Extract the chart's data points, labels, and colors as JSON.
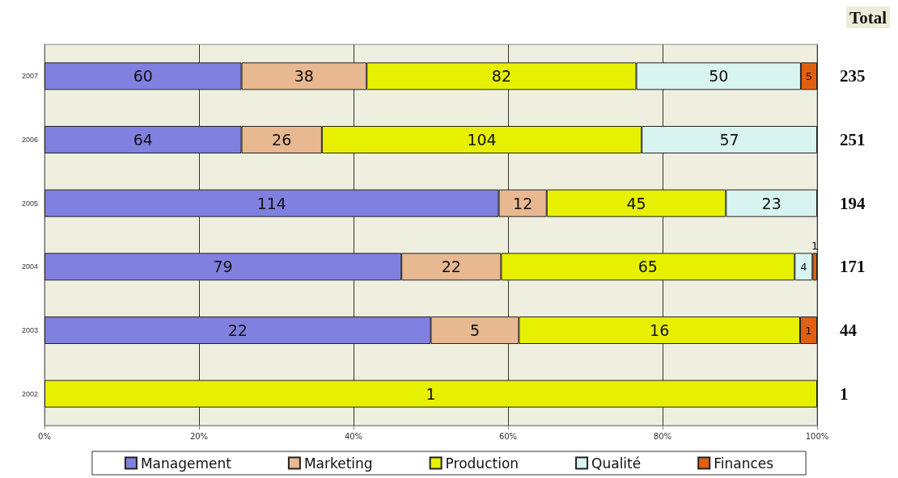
{
  "chart_data": {
    "type": "bar",
    "orientation": "horizontal",
    "stacked": true,
    "categories": [
      "2007",
      "2006",
      "2005",
      "2004",
      "2003",
      "2002"
    ],
    "series": [
      {
        "name": "Management",
        "color": "#8080e0",
        "values": [
          25.5,
          25.5,
          58.8,
          46.2,
          50.0,
          null
        ]
      },
      {
        "name": "Marketing",
        "color": "#e8b890",
        "values": [
          16.2,
          10.4,
          6.2,
          12.9,
          11.4,
          null
        ]
      },
      {
        "name": "Production",
        "color": "#e6f000",
        "values": [
          34.9,
          41.4,
          23.2,
          38.0,
          36.4,
          100
        ]
      },
      {
        "name": "Qualité",
        "color": "#d8f4f0",
        "values": [
          21.3,
          22.7,
          11.8,
          2.3,
          null,
          null
        ]
      },
      {
        "name": "Finances",
        "color": "#e06010",
        "values": [
          2.1,
          null,
          null,
          0.6,
          2.2,
          null
        ]
      }
    ],
    "annotations": [
      "Total",
      "60",
      "38",
      "82",
      "50",
      "5",
      "235",
      "64",
      "26",
      "104",
      "57",
      "251",
      "114",
      "12",
      "45",
      "23",
      "194",
      "79",
      "22",
      "65",
      "4",
      "1",
      "171",
      "22",
      "5",
      "16",
      "1",
      "44",
      "1",
      "1"
    ],
    "xlim": [
      0,
      100
    ],
    "xticks": [
      {
        "value": 0,
        "label": "0%"
      },
      {
        "value": 20,
        "label": "20%"
      },
      {
        "value": 40,
        "label": "40%"
      },
      {
        "value": 60,
        "label": "60%"
      },
      {
        "value": 80,
        "label": "80%"
      },
      {
        "value": 100,
        "label": "100%"
      }
    ],
    "grid": "x",
    "legend": "bottom"
  }
}
